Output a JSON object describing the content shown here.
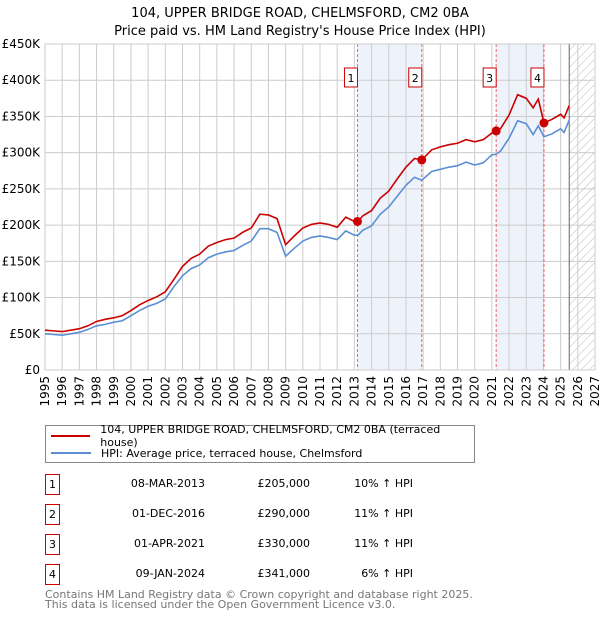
{
  "title": "104, UPPER BRIDGE ROAD, CHELMSFORD, CM2 0BA",
  "subtitle": "Price paid vs. HM Land Registry's House Price Index (HPI)",
  "chart_data": {
    "type": "line",
    "ylim": [
      0,
      450000
    ],
    "xlim": [
      1995,
      2027
    ],
    "yticks": [
      {
        "v": 0,
        "label": "£0"
      },
      {
        "v": 50000,
        "label": "£50K"
      },
      {
        "v": 100000,
        "label": "£100K"
      },
      {
        "v": 150000,
        "label": "£150K"
      },
      {
        "v": 200000,
        "label": "£200K"
      },
      {
        "v": 250000,
        "label": "£250K"
      },
      {
        "v": 300000,
        "label": "£300K"
      },
      {
        "v": 350000,
        "label": "£350K"
      },
      {
        "v": 400000,
        "label": "£400K"
      },
      {
        "v": 450000,
        "label": "£450K"
      }
    ],
    "xticks": [
      "1995",
      "1996",
      "1997",
      "1998",
      "1999",
      "2000",
      "2001",
      "2002",
      "2003",
      "2004",
      "2005",
      "2006",
      "2007",
      "2008",
      "2009",
      "2010",
      "2011",
      "2012",
      "2013",
      "2014",
      "2015",
      "2016",
      "2017",
      "2018",
      "2019",
      "2020",
      "2021",
      "2022",
      "2023",
      "2024",
      "2025",
      "2026",
      "2027"
    ],
    "shaded_periods": [
      [
        2013.18,
        2016.92
      ],
      [
        2021.25,
        2024.03
      ]
    ],
    "forecast_from": 2025.5,
    "series": [
      {
        "name": "104, UPPER BRIDGE ROAD, CHELMSFORD, CM2 0BA (terraced house)",
        "color": "#cc0000",
        "x": [
          1995,
          1995.5,
          1996,
          1996.5,
          1997,
          1997.5,
          1998,
          1998.5,
          1999,
          1999.5,
          2000,
          2000.5,
          2001,
          2001.5,
          2002,
          2002.5,
          2003,
          2003.5,
          2004,
          2004.5,
          2005,
          2005.5,
          2006,
          2006.5,
          2007,
          2007.5,
          2008,
          2008.5,
          2009,
          2009.5,
          2010,
          2010.5,
          2011,
          2011.5,
          2012,
          2012.5,
          2013,
          2013.2,
          2013.5,
          2014,
          2014.5,
          2015,
          2015.5,
          2016,
          2016.5,
          2016.92,
          2017.5,
          2018,
          2018.5,
          2019,
          2019.5,
          2020,
          2020.5,
          2021,
          2021.25,
          2021.5,
          2022,
          2022.5,
          2023,
          2023.4,
          2023.7,
          2024.03,
          2024.5,
          2025,
          2025.2,
          2025.5
        ],
        "y": [
          55000,
          54000,
          53000,
          55000,
          57000,
          61000,
          67000,
          70000,
          72000,
          75000,
          82000,
          90000,
          96000,
          101000,
          108000,
          125000,
          143000,
          154000,
          160000,
          171000,
          176000,
          180000,
          182000,
          190000,
          196000,
          215000,
          214000,
          209000,
          173000,
          185000,
          196000,
          201000,
          203000,
          201000,
          197000,
          211000,
          205000,
          205000,
          213000,
          220000,
          237000,
          247000,
          264000,
          280000,
          292000,
          290000,
          304000,
          308000,
          311000,
          313000,
          318000,
          315000,
          318000,
          327000,
          330000,
          333000,
          352000,
          380000,
          375000,
          362000,
          374000,
          341000,
          346000,
          353000,
          348000,
          365000
        ]
      },
      {
        "name": "HPI: Average price, terraced house, Chelmsford",
        "color": "#5b8fd4",
        "x": [
          1995,
          1995.5,
          1996,
          1996.5,
          1997,
          1997.5,
          1998,
          1998.5,
          1999,
          1999.5,
          2000,
          2000.5,
          2001,
          2001.5,
          2002,
          2002.5,
          2003,
          2003.5,
          2004,
          2004.5,
          2005,
          2005.5,
          2006,
          2006.5,
          2007,
          2007.5,
          2008,
          2008.5,
          2009,
          2009.5,
          2010,
          2010.5,
          2011,
          2011.5,
          2012,
          2012.5,
          2013,
          2013.2,
          2013.5,
          2014,
          2014.5,
          2015,
          2015.5,
          2016,
          2016.5,
          2016.92,
          2017.5,
          2018,
          2018.5,
          2019,
          2019.5,
          2020,
          2020.5,
          2021,
          2021.25,
          2021.5,
          2022,
          2022.5,
          2023,
          2023.4,
          2023.7,
          2024.03,
          2024.5,
          2025,
          2025.2,
          2025.5
        ],
        "y": [
          50000,
          49000,
          48000,
          50000,
          52000,
          56000,
          61000,
          63000,
          66000,
          68000,
          75000,
          82000,
          88000,
          92000,
          98000,
          115000,
          130000,
          140000,
          145000,
          155000,
          160000,
          163000,
          165000,
          172000,
          178000,
          195000,
          195000,
          190000,
          157000,
          168000,
          178000,
          183000,
          185000,
          183000,
          180000,
          192000,
          186000,
          186000,
          193000,
          199000,
          215000,
          225000,
          240000,
          255000,
          266000,
          262000,
          274000,
          277000,
          280000,
          282000,
          287000,
          283000,
          286000,
          297000,
          298000,
          302000,
          320000,
          344000,
          340000,
          325000,
          337000,
          322000,
          326000,
          333000,
          328000,
          345000
        ]
      }
    ],
    "markers": [
      {
        "label": "1",
        "x": 2013.18,
        "y": 205000
      },
      {
        "label": "2",
        "x": 2016.92,
        "y": 290000
      },
      {
        "label": "3",
        "x": 2021.25,
        "y": 330000
      },
      {
        "label": "4",
        "x": 2024.03,
        "y": 341000
      }
    ]
  },
  "legend": [
    "104, UPPER BRIDGE ROAD, CHELMSFORD, CM2 0BA (terraced house)",
    "HPI: Average price, terraced house, Chelmsford"
  ],
  "transactions": [
    {
      "num": "1",
      "date": "08-MAR-2013",
      "price": "£205,000",
      "hpi": "10% ↑ HPI"
    },
    {
      "num": "2",
      "date": "01-DEC-2016",
      "price": "£290,000",
      "hpi": "11% ↑ HPI"
    },
    {
      "num": "3",
      "date": "01-APR-2021",
      "price": "£330,000",
      "hpi": "11% ↑ HPI"
    },
    {
      "num": "4",
      "date": "09-JAN-2024",
      "price": "£341,000",
      "hpi": "6% ↑ HPI"
    }
  ],
  "footer": [
    "Contains HM Land Registry data © Crown copyright and database right 2025.",
    "This data is licensed under the Open Government Licence v3.0."
  ]
}
